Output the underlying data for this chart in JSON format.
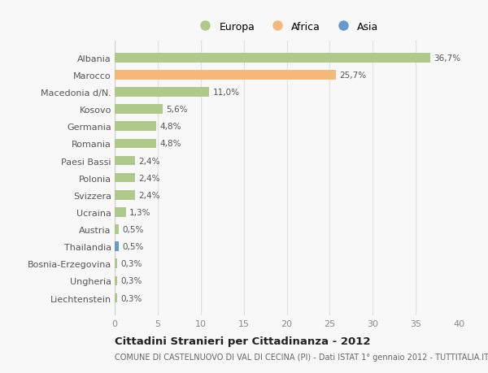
{
  "categories": [
    "Albania",
    "Marocco",
    "Macedonia d/N.",
    "Kosovo",
    "Germania",
    "Romania",
    "Paesi Bassi",
    "Polonia",
    "Svizzera",
    "Ucraina",
    "Austria",
    "Thailandia",
    "Bosnia-Erzegovina",
    "Ungheria",
    "Liechtenstein"
  ],
  "values": [
    36.7,
    25.7,
    11.0,
    5.6,
    4.8,
    4.8,
    2.4,
    2.4,
    2.4,
    1.3,
    0.5,
    0.5,
    0.3,
    0.3,
    0.3
  ],
  "labels": [
    "36,7%",
    "25,7%",
    "11,0%",
    "5,6%",
    "4,8%",
    "4,8%",
    "2,4%",
    "2,4%",
    "2,4%",
    "1,3%",
    "0,5%",
    "0,5%",
    "0,3%",
    "0,3%",
    "0,3%"
  ],
  "continents": [
    "Europa",
    "Africa",
    "Europa",
    "Europa",
    "Europa",
    "Europa",
    "Europa",
    "Europa",
    "Europa",
    "Europa",
    "Europa",
    "Asia",
    "Europa",
    "Europa",
    "Europa"
  ],
  "colors": {
    "Europa": "#aec98a",
    "Africa": "#f4b97b",
    "Asia": "#6699cc"
  },
  "legend_items": [
    "Europa",
    "Africa",
    "Asia"
  ],
  "legend_colors": [
    "#aec98a",
    "#f4b97b",
    "#6699cc"
  ],
  "xlim": [
    0,
    40
  ],
  "xticks": [
    0,
    5,
    10,
    15,
    20,
    25,
    30,
    35,
    40
  ],
  "title": "Cittadini Stranieri per Cittadinanza - 2012",
  "subtitle": "COMUNE DI CASTELNUOVO DI VAL DI CECINA (PI) - Dati ISTAT 1° gennaio 2012 - TUTTITALIA.IT",
  "background_color": "#f8f8f8",
  "grid_color": "#e0e0e0",
  "bar_height": 0.55
}
